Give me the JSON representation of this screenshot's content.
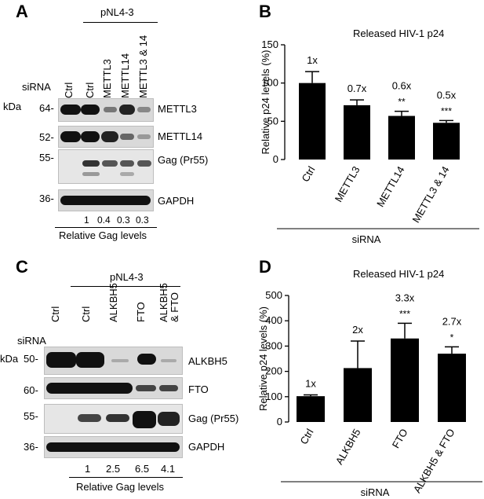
{
  "panelA": {
    "letter": "A",
    "construct": "pNL4-3",
    "sirna_label": "siRNA",
    "kda_label": "kDa",
    "lanes": [
      "Ctrl",
      "Ctrl",
      "METTL3",
      "METTL14",
      "METTL3 & 14"
    ],
    "markers": [
      "64-",
      "52-",
      "55-",
      "36-"
    ],
    "blots": [
      "METTL3",
      "METTL14",
      "Gag (Pr55)",
      "GAPDH"
    ],
    "gag_values": [
      "1",
      "0.4",
      "0.3",
      "0.3"
    ],
    "gag_caption": "Relative Gag levels"
  },
  "panelC": {
    "letter": "C",
    "construct": "pNL4-3",
    "sirna_label": "siRNA",
    "kda_label": "kDa",
    "lanes": [
      "Ctrl",
      "Ctrl",
      "ALKBH5",
      "FTO",
      "ALKBH5",
      "& FTO"
    ],
    "markers": [
      "50-",
      "60-",
      "55-",
      "36-"
    ],
    "blots": [
      "ALKBH5",
      "FTO",
      "Gag (Pr55)",
      "GAPDH"
    ],
    "gag_values": [
      "1",
      "2.5",
      "6.5",
      "4.1"
    ],
    "gag_caption": "Relative Gag levels"
  },
  "chart_data": [
    {
      "panel": "B",
      "type": "bar",
      "title": "Released HIV-1 p24",
      "ylabel": "Relative p24 levels (%)",
      "xlabel": "siRNA",
      "ylim": [
        0,
        150
      ],
      "yticks": [
        0,
        50,
        100,
        150
      ],
      "categories": [
        "Ctrl",
        "METTL3",
        "METTL14",
        "METTL3 & 14"
      ],
      "values": [
        100,
        71,
        57,
        48
      ],
      "errors": [
        15,
        7,
        6,
        3
      ],
      "fold_labels": [
        "1x",
        "0.7x",
        "0.6x",
        "0.5x"
      ],
      "significance": [
        "",
        "",
        "**",
        "***"
      ]
    },
    {
      "panel": "D",
      "type": "bar",
      "title": "Released HIV-1 p24",
      "ylabel": "Relative p24 levels (%)",
      "xlabel": "siRNA",
      "ylim": [
        0,
        500
      ],
      "yticks": [
        0,
        100,
        200,
        300,
        400,
        500
      ],
      "categories": [
        "Ctrl",
        "ALKBH5",
        "FTO",
        "ALKBH5 & FTO"
      ],
      "values": [
        102,
        213,
        330,
        270
      ],
      "errors": [
        5,
        107,
        60,
        27
      ],
      "fold_labels": [
        "1x",
        "2x",
        "3.3x",
        "2.7x"
      ],
      "significance": [
        "",
        "",
        "***",
        "*"
      ]
    }
  ],
  "colors": {
    "bar": "#000000",
    "band_dark": "#111111",
    "strip": "#d9d9d9"
  }
}
